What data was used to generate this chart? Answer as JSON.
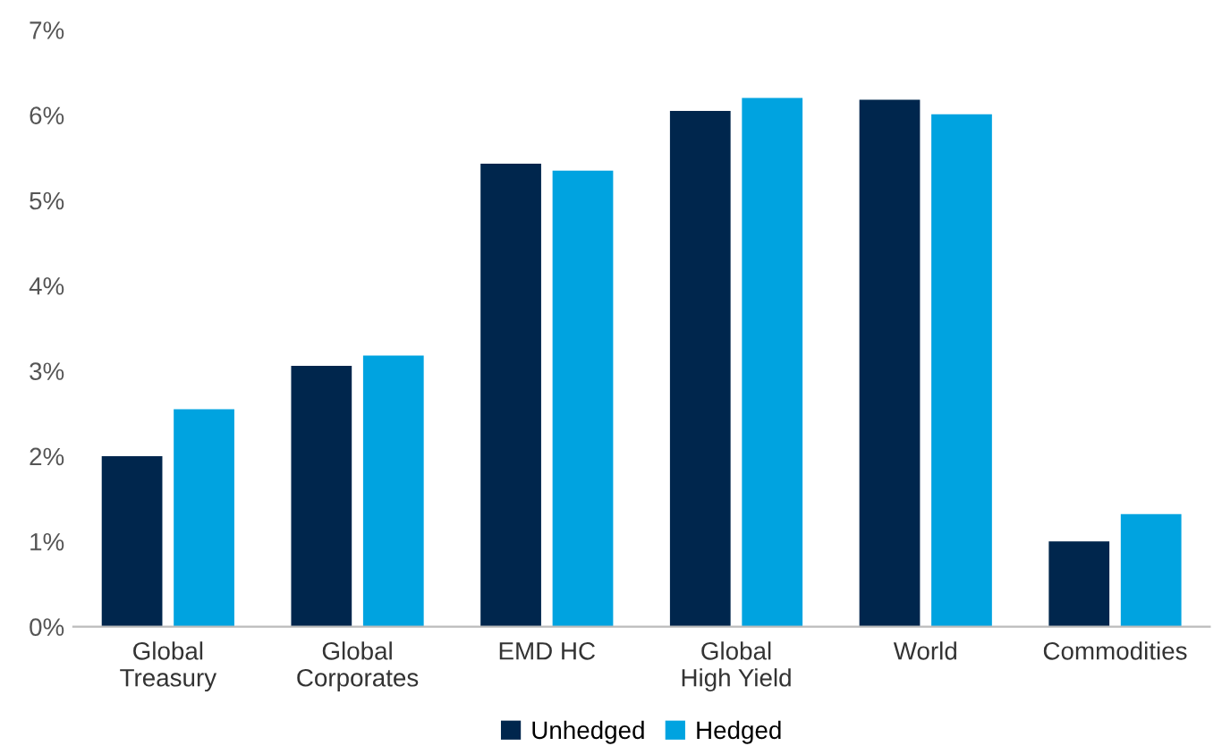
{
  "chart_data": {
    "type": "bar",
    "categories": [
      "Global\nTreasury",
      "Global\nCorporates",
      "EMD HC",
      "Global\nHigh Yield",
      "World",
      "Commodities"
    ],
    "series": [
      {
        "name": "Unhedged",
        "color": "#00264d",
        "values": [
          2.0,
          3.06,
          5.43,
          6.05,
          6.18,
          1.0
        ]
      },
      {
        "name": "Hedged",
        "color": "#00a3e0",
        "values": [
          2.55,
          3.18,
          5.35,
          6.2,
          6.01,
          1.32
        ]
      }
    ],
    "ylim": [
      0,
      7
    ],
    "yticks": [
      {
        "value": 0,
        "label": "0%"
      },
      {
        "value": 1,
        "label": "1%"
      },
      {
        "value": 2,
        "label": "2%"
      },
      {
        "value": 3,
        "label": "3%"
      },
      {
        "value": 4,
        "label": "4%"
      },
      {
        "value": 5,
        "label": "5%"
      },
      {
        "value": 6,
        "label": "6%"
      },
      {
        "value": 7,
        "label": "7%"
      }
    ],
    "grid": false,
    "legend": "bottom"
  }
}
